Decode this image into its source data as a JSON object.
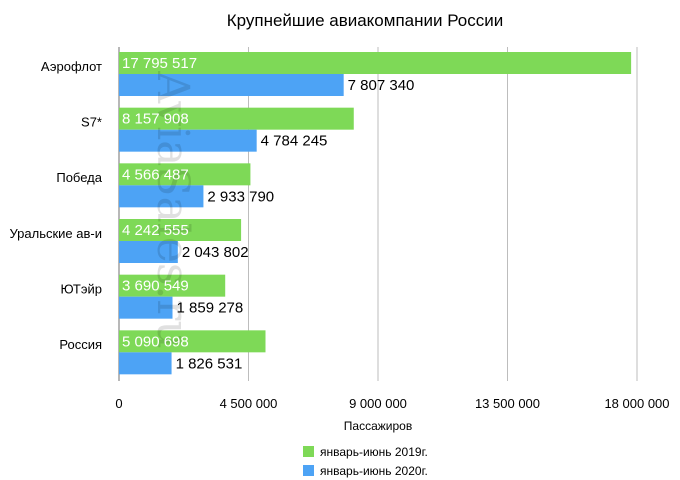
{
  "chart_data": {
    "type": "bar",
    "orientation": "horizontal",
    "title": "Крупнейшие авиакомпании России",
    "xlabel": "Пассажиров",
    "ylabel": "",
    "categories": [
      "Аэрофлот",
      "S7*",
      "Победа",
      "Уральские ав-и",
      "ЮТэйр",
      "Россия"
    ],
    "series": [
      {
        "name": "январь-июнь 2019г.",
        "color": "#7ed957",
        "values": [
          17795517,
          8157908,
          4566487,
          4242555,
          3690549,
          5090698
        ],
        "labels": [
          "17 795 517",
          "8 157 908",
          "4 566 487",
          "4 242 555",
          "3 690 549",
          "5 090 698"
        ]
      },
      {
        "name": "январь-июнь 2020г.",
        "color": "#4da3f5",
        "values": [
          7807340,
          4784245,
          2933790,
          2043802,
          1859278,
          1826531
        ],
        "labels": [
          "7 807 340",
          "4 784 245",
          "2 933 790",
          "2 043 802",
          "1 859 278",
          "1 826 531"
        ]
      }
    ],
    "xlim": [
      0,
      18000000
    ],
    "xticks": [
      0,
      4500000,
      9000000,
      13500000,
      18000000
    ],
    "xtick_labels": [
      "0",
      "4 500 000",
      "9 000 000",
      "13 500 000",
      "18 000 000"
    ],
    "grid": true,
    "legend_position": "bottom",
    "watermark": "AviaSales.ru"
  }
}
